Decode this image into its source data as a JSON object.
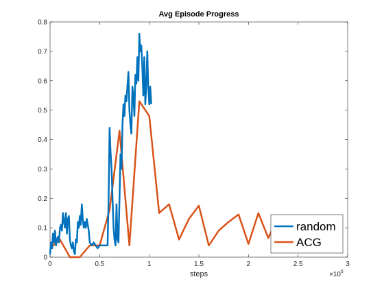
{
  "chart_data": {
    "type": "line",
    "title": "Avg Episode Progress",
    "xlabel": "steps",
    "ylabel": "",
    "x_exponent_base": "×10",
    "x_exponent_power": "6",
    "xlim": [
      0,
      3
    ],
    "ylim": [
      0,
      0.8
    ],
    "xticks": [
      "0",
      "0.5",
      "1",
      "1.5",
      "2",
      "2.5",
      "3"
    ],
    "yticks": [
      "0",
      "0.1",
      "0.2",
      "0.3",
      "0.4",
      "0.5",
      "0.6",
      "0.7",
      "0.8"
    ],
    "legend_placement": "bottom-right",
    "grid": false,
    "series": [
      {
        "name": "random",
        "color": "#0072BD",
        "x": [
          0.0,
          0.01,
          0.02,
          0.03,
          0.04,
          0.05,
          0.06,
          0.07,
          0.08,
          0.09,
          0.1,
          0.11,
          0.12,
          0.13,
          0.14,
          0.15,
          0.16,
          0.17,
          0.18,
          0.19,
          0.2,
          0.21,
          0.22,
          0.23,
          0.24,
          0.25,
          0.26,
          0.27,
          0.28,
          0.29,
          0.3,
          0.31,
          0.32,
          0.33,
          0.34,
          0.35,
          0.36,
          0.37,
          0.38,
          0.39,
          0.4,
          0.42,
          0.44,
          0.46,
          0.48,
          0.5,
          0.52,
          0.55,
          0.58,
          0.59,
          0.6,
          0.61,
          0.62,
          0.63,
          0.64,
          0.65,
          0.66,
          0.67,
          0.68,
          0.69,
          0.7,
          0.71,
          0.72,
          0.73,
          0.74,
          0.75,
          0.76,
          0.77,
          0.78,
          0.79,
          0.8,
          0.81,
          0.82,
          0.83,
          0.84,
          0.85,
          0.86,
          0.87,
          0.88,
          0.89,
          0.9,
          0.91,
          0.92,
          0.93,
          0.94,
          0.95,
          0.96,
          0.97,
          0.98,
          0.99,
          1.0,
          1.01,
          1.02
        ],
        "y": [
          0.01,
          0.05,
          0.03,
          0.08,
          0.05,
          0.09,
          0.04,
          0.06,
          0.07,
          0.05,
          0.1,
          0.11,
          0.09,
          0.15,
          0.12,
          0.1,
          0.15,
          0.08,
          0.13,
          0.14,
          0.06,
          0.04,
          0.03,
          0.05,
          0.02,
          0.01,
          0.06,
          0.05,
          0.12,
          0.1,
          0.14,
          0.11,
          0.18,
          0.13,
          0.1,
          0.12,
          0.1,
          0.13,
          0.11,
          0.09,
          0.05,
          0.04,
          0.05,
          0.04,
          0.03,
          0.04,
          0.04,
          0.04,
          0.04,
          0.2,
          0.44,
          0.36,
          0.3,
          0.2,
          0.1,
          0.06,
          0.04,
          0.18,
          0.06,
          0.05,
          0.2,
          0.35,
          0.3,
          0.45,
          0.52,
          0.48,
          0.55,
          0.53,
          0.58,
          0.63,
          0.5,
          0.45,
          0.42,
          0.58,
          0.55,
          0.48,
          0.62,
          0.59,
          0.68,
          0.6,
          0.76,
          0.7,
          0.72,
          0.65,
          0.55,
          0.68,
          0.52,
          0.58,
          0.7,
          0.58,
          0.52,
          0.58,
          0.52
        ]
      },
      {
        "name": "ACG",
        "color": "#D95319",
        "x": [
          0.0,
          0.1,
          0.2,
          0.3,
          0.4,
          0.5,
          0.6,
          0.7,
          0.8,
          0.9,
          1.0,
          1.1,
          1.2,
          1.3,
          1.4,
          1.5,
          1.6,
          1.7,
          1.8,
          1.9,
          2.0,
          2.1,
          2.2,
          2.3,
          2.4,
          2.5
        ],
        "y": [
          0.03,
          0.06,
          0.0,
          0.0,
          0.04,
          0.04,
          0.16,
          0.43,
          0.04,
          0.53,
          0.48,
          0.15,
          0.18,
          0.06,
          0.13,
          0.175,
          0.04,
          0.09,
          0.12,
          0.145,
          0.045,
          0.15,
          0.065,
          0.14,
          0.08,
          0.14
        ]
      }
    ]
  }
}
